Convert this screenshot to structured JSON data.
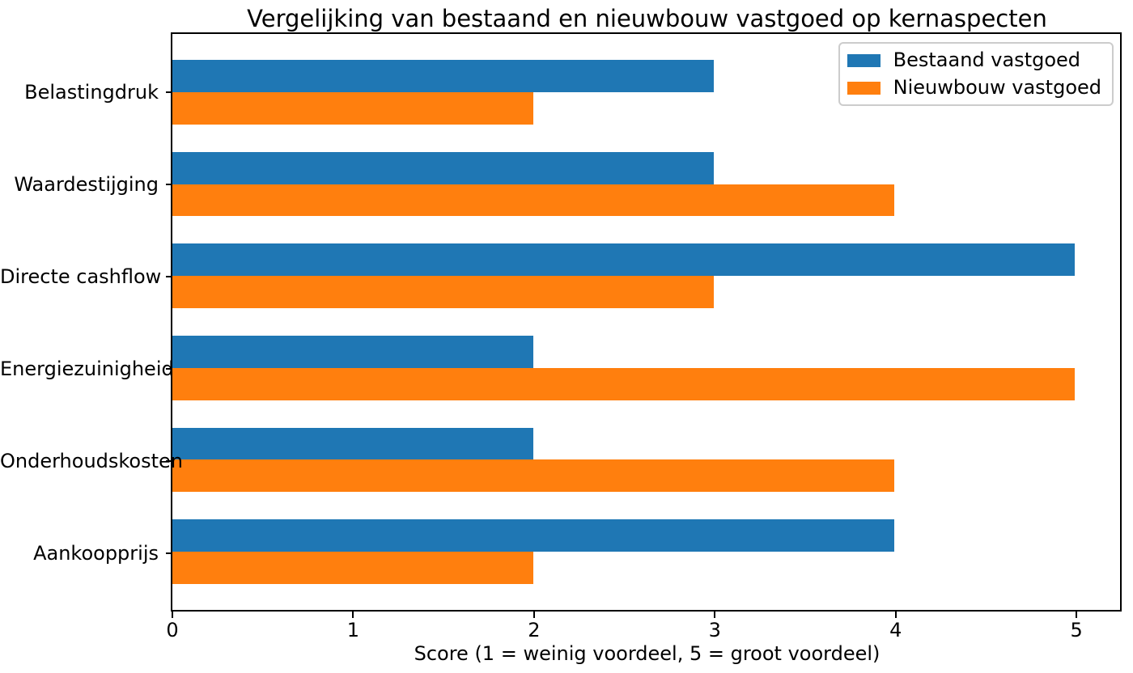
{
  "chart_data": {
    "type": "bar",
    "orientation": "horizontal",
    "title": "Vergelijking van bestaand en nieuwbouw vastgoed op kernaspecten",
    "xlabel": "Score (1 = weinig voordeel, 5 = groot voordeel)",
    "ylabel": "",
    "categories": [
      "Belastingdruk",
      "Waardestijging",
      "Directe cashflow",
      "Energiezuinigheid",
      "Onderhoudskosten",
      "Aankoopprijs"
    ],
    "series": [
      {
        "name": "Bestaand vastgoed",
        "color": "#1f77b4",
        "values": [
          3,
          3,
          5,
          2,
          2,
          4
        ]
      },
      {
        "name": "Nieuwbouw vastgoed",
        "color": "#ff7f0e",
        "values": [
          2,
          4,
          3,
          5,
          4,
          2
        ]
      }
    ],
    "xlim": [
      0,
      5.25
    ],
    "xticks": [
      0,
      1,
      2,
      3,
      4,
      5
    ],
    "legend_position": "upper right",
    "grid": false,
    "background": "#ffffff",
    "text_color": "#000000",
    "axis_color": "#000000"
  }
}
